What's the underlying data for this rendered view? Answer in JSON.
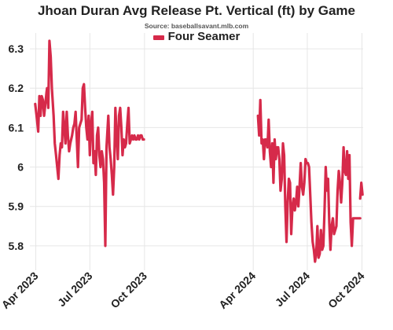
{
  "chart_data": {
    "type": "line",
    "title": "Jhoan Duran Avg Release Pt. Vertical (ft) by Game",
    "subtitle": "Source: baseballsavant.mlb.com",
    "xlabel": "",
    "ylabel": "",
    "ylim": [
      5.75,
      6.34
    ],
    "yticks": [
      5.8,
      5.9,
      6,
      6.1,
      6.2,
      6.3
    ],
    "ytick_labels": [
      "5.8",
      "5.9",
      "6",
      "6.1",
      "6.2",
      "6.3"
    ],
    "x_range": [
      "2023-03-22",
      "2024-10-03"
    ],
    "xticks": [
      "2023-04-01",
      "2023-07-01",
      "2023-10-01",
      "2024-04-01",
      "2024-07-01",
      "2024-10-01"
    ],
    "xtick_labels": [
      "Apr 2023",
      "Jul 2023",
      "Oct 2023",
      "Apr 2024",
      "Jul 2024",
      "Oct 2024"
    ],
    "grid": true,
    "legend_position": "top-center",
    "colors": {
      "series": "#d62a4a",
      "grid": "#e6e6e6",
      "text": "#222222"
    },
    "series": [
      {
        "name": "Four Seamer",
        "segments": [
          {
            "x": [
              "2023-03-31",
              "2023-04-03",
              "2023-04-05",
              "2023-04-07",
              "2023-04-09",
              "2023-04-11",
              "2023-04-13",
              "2023-04-15",
              "2023-04-17",
              "2023-04-19",
              "2023-04-20",
              "2023-04-22",
              "2023-04-24",
              "2023-04-26",
              "2023-04-28",
              "2023-05-01",
              "2023-05-03",
              "2023-05-05",
              "2023-05-07",
              "2023-05-09",
              "2023-05-11",
              "2023-05-13",
              "2023-05-15",
              "2023-05-17",
              "2023-05-19",
              "2023-05-21",
              "2023-05-23",
              "2023-05-25",
              "2023-05-27",
              "2023-05-29",
              "2023-06-01",
              "2023-06-03",
              "2023-06-05",
              "2023-06-07",
              "2023-06-09",
              "2023-06-11",
              "2023-06-13",
              "2023-06-15",
              "2023-06-17",
              "2023-06-19",
              "2023-06-21",
              "2023-06-23",
              "2023-06-25",
              "2023-06-27",
              "2023-06-29",
              "2023-07-01",
              "2023-07-03",
              "2023-07-05",
              "2023-07-07",
              "2023-07-09",
              "2023-07-11",
              "2023-07-13",
              "2023-07-15",
              "2023-07-17",
              "2023-07-19",
              "2023-07-21",
              "2023-07-23",
              "2023-07-25",
              "2023-07-27",
              "2023-07-29",
              "2023-08-01",
              "2023-08-03",
              "2023-08-05",
              "2023-08-07",
              "2023-08-09",
              "2023-08-11",
              "2023-08-13",
              "2023-08-15",
              "2023-08-17",
              "2023-08-19",
              "2023-08-21",
              "2023-08-23",
              "2023-08-25",
              "2023-08-27",
              "2023-08-29",
              "2023-08-31",
              "2023-09-02",
              "2023-09-04",
              "2023-09-06",
              "2023-09-08",
              "2023-09-10",
              "2023-09-12",
              "2023-09-14",
              "2023-09-16",
              "2023-09-18",
              "2023-09-20",
              "2023-09-22",
              "2023-09-24",
              "2023-09-26",
              "2023-09-28",
              "2023-09-30"
            ],
            "y": [
              6.16,
              6.12,
              6.09,
              6.18,
              6.13,
              6.18,
              6.17,
              6.13,
              6.16,
              6.19,
              6.2,
              6.15,
              6.32,
              6.28,
              6.2,
              6.13,
              6.06,
              6.03,
              6.0,
              5.97,
              6.03,
              6.06,
              6.05,
              6.14,
              6.1,
              6.06,
              6.14,
              6.08,
              6.04,
              6.06,
              6.08,
              6.1,
              6.11,
              6.14,
              6.07,
              6.0,
              6.1,
              6.11,
              6.12,
              6.2,
              6.21,
              6.15,
              6.1,
              6.07,
              6.13,
              6.03,
              6.11,
              6.14,
              6.01,
              6.04,
              5.98,
              6.08,
              6.1,
              6.03,
              6.0,
              6.04,
              6.02,
              5.96,
              5.8,
              6.05,
              6.13,
              6.05,
              6.02,
              5.98,
              5.93,
              6.0,
              6.15,
              6.08,
              6.02,
              6.13,
              6.15,
              6.1,
              6.03,
              6.07,
              6.05,
              6.06,
              6.11,
              6.15,
              6.06,
              6.07,
              6.08,
              6.07,
              6.08,
              6.07,
              6.07,
              6.08,
              6.07,
              6.08,
              6.08,
              6.07,
              6.07
            ]
          },
          {
            "x": [
              "2024-04-09",
              "2024-04-11",
              "2024-04-13",
              "2024-04-15",
              "2024-04-17",
              "2024-04-19",
              "2024-04-21",
              "2024-04-23",
              "2024-04-25",
              "2024-04-27",
              "2024-04-29",
              "2024-05-01",
              "2024-05-03",
              "2024-05-05",
              "2024-05-07",
              "2024-05-09",
              "2024-05-11",
              "2024-05-13",
              "2024-05-15",
              "2024-05-17",
              "2024-05-19",
              "2024-05-21",
              "2024-05-23",
              "2024-05-25",
              "2024-05-27",
              "2024-05-29",
              "2024-05-31",
              "2024-06-02",
              "2024-06-04",
              "2024-06-06",
              "2024-06-08",
              "2024-06-10",
              "2024-06-12",
              "2024-06-14",
              "2024-06-16",
              "2024-06-18",
              "2024-06-20",
              "2024-06-22",
              "2024-06-24",
              "2024-06-26",
              "2024-06-28",
              "2024-06-30",
              "2024-07-02",
              "2024-07-04",
              "2024-07-06",
              "2024-07-08",
              "2024-07-10",
              "2024-07-12",
              "2024-07-14",
              "2024-07-16",
              "2024-07-18",
              "2024-07-20",
              "2024-07-22",
              "2024-07-24",
              "2024-07-26",
              "2024-07-28",
              "2024-07-30",
              "2024-08-01",
              "2024-08-03",
              "2024-08-05",
              "2024-08-07",
              "2024-08-09",
              "2024-08-11",
              "2024-08-13",
              "2024-08-15",
              "2024-08-17",
              "2024-08-19",
              "2024-08-21",
              "2024-08-23",
              "2024-08-25",
              "2024-08-27",
              "2024-08-29",
              "2024-08-31",
              "2024-09-02",
              "2024-09-04",
              "2024-09-06",
              "2024-09-08",
              "2024-09-10",
              "2024-09-12",
              "2024-09-14",
              "2024-09-16",
              "2024-09-18",
              "2024-09-20",
              "2024-09-22",
              "2024-09-24",
              "2024-09-26",
              "2024-09-28"
            ],
            "y": [
              6.13,
              6.08,
              6.17,
              6.06,
              6.07,
              6.02,
              6.07,
              6.07,
              6.05,
              6.12,
              6.04,
              6.0,
              6.06,
              5.96,
              6.07,
              6.02,
              6.05,
              6.05,
              6.02,
              5.94,
              5.97,
              6.06,
              6.03,
              5.9,
              5.81,
              5.91,
              5.97,
              5.96,
              5.83,
              5.9,
              5.92,
              5.89,
              5.91,
              5.95,
              5.9,
              5.95,
              6.01,
              5.95,
              5.93,
              5.96,
              6.02,
              6.01,
              6.01,
              6.0,
              5.93,
              5.86,
              5.81,
              5.79,
              5.76,
              5.78,
              5.85,
              5.77,
              5.78,
              5.84,
              5.79,
              5.8,
              5.89,
              6.0,
              5.94,
              5.97,
              5.86,
              5.79,
              5.85,
              5.87,
              5.83,
              5.84,
              5.85,
              5.94,
              5.99,
              5.96,
              5.91,
              5.96,
              6.05,
              5.99,
              5.98,
              6.04,
              5.97,
              6.03,
              5.86,
              5.8,
              5.87,
              5.87,
              5.87,
              5.87,
              5.87,
              5.87,
              5.87
            ]
          },
          {
            "x": [
              "2024-09-28",
              "2024-09-30",
              "2024-10-02"
            ],
            "y": [
              5.92,
              5.96,
              5.93
            ]
          }
        ]
      }
    ]
  }
}
